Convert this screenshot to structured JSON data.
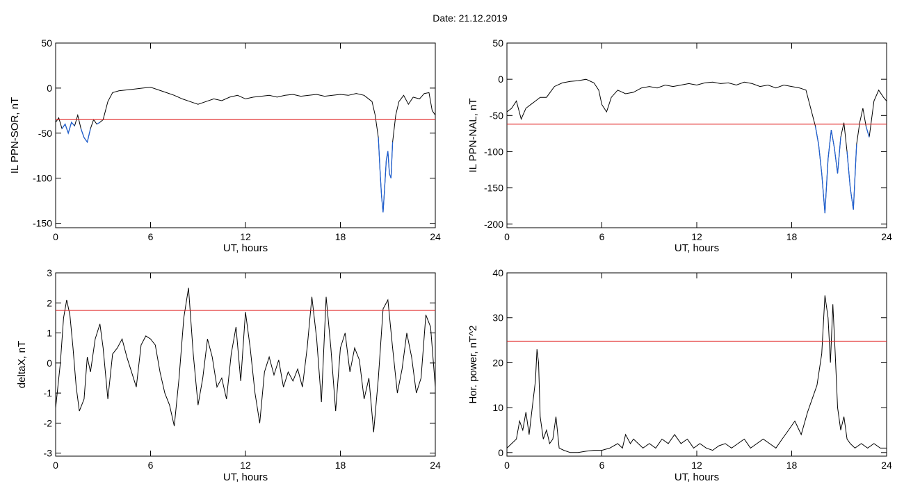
{
  "header": {
    "date_label": "Date:  21.12.2019"
  },
  "colors": {
    "trace": "#000000",
    "threshold": "#e02020",
    "segment_blue": "#1f5fd0",
    "segment_green": "#2ab52a",
    "marker_red": "#e02020",
    "marker_blue": "#2060d0",
    "marker_green": "#30b030"
  },
  "chart_data": [
    {
      "id": "il-sor",
      "type": "line",
      "ylabel": "IL PPN-SOR, nT",
      "xlabel": "UT, hours",
      "xlim": [
        0,
        24
      ],
      "ylim": [
        -155,
        50
      ],
      "xticks": [
        0,
        6,
        12,
        18,
        24
      ],
      "yticks": [
        50,
        0,
        -50,
        -100,
        -150
      ],
      "threshold": -35,
      "series": [
        {
          "x": [
            0,
            0.2,
            0.4,
            0.6,
            0.8,
            1.0,
            1.2,
            1.4,
            1.6,
            1.8,
            2.0,
            2.2,
            2.4,
            2.6,
            2.8,
            3.0,
            3.3,
            3.6,
            4.0,
            4.5,
            5.0,
            5.5,
            6.0,
            6.5,
            7.0,
            7.5,
            8.0,
            8.5,
            9.0,
            9.5,
            10.0,
            10.5,
            11.0,
            11.5,
            12.0,
            12.5,
            13.0,
            13.5,
            14.0,
            14.5,
            15.0,
            15.5,
            16.0,
            16.5,
            17.0,
            17.5,
            18.0,
            18.5,
            19.0,
            19.5,
            20.0,
            20.2,
            20.4,
            20.5,
            20.6,
            20.7,
            20.8,
            20.9,
            21.0,
            21.1,
            21.2,
            21.3,
            21.5,
            21.7,
            22.0,
            22.3,
            22.6,
            23.0,
            23.3,
            23.6,
            23.8,
            24.0
          ],
          "y": [
            -38,
            -33,
            -45,
            -40,
            -50,
            -38,
            -42,
            -30,
            -45,
            -55,
            -60,
            -45,
            -35,
            -40,
            -38,
            -35,
            -15,
            -5,
            -3,
            -2,
            -1,
            0,
            1,
            -2,
            -5,
            -8,
            -12,
            -15,
            -18,
            -15,
            -12,
            -14,
            -10,
            -8,
            -12,
            -10,
            -9,
            -8,
            -10,
            -8,
            -7,
            -9,
            -8,
            -7,
            -9,
            -8,
            -7,
            -8,
            -6,
            -8,
            -15,
            -30,
            -55,
            -90,
            -120,
            -138,
            -110,
            -80,
            -70,
            -95,
            -100,
            -60,
            -30,
            -15,
            -8,
            -18,
            -10,
            -12,
            -6,
            -5,
            -25,
            -30
          ]
        }
      ]
    },
    {
      "id": "il-nal",
      "type": "line",
      "ylabel": "IL PPN-NAL, nT",
      "xlabel": "UT, hours",
      "xlim": [
        0,
        24
      ],
      "ylim": [
        -205,
        50
      ],
      "xticks": [
        0,
        6,
        12,
        18,
        24
      ],
      "yticks": [
        50,
        0,
        -50,
        -100,
        -150,
        -200
      ],
      "threshold": -62,
      "series": [
        {
          "x": [
            0,
            0.3,
            0.6,
            0.9,
            1.2,
            1.5,
            1.8,
            2.1,
            2.5,
            3.0,
            3.5,
            4.0,
            4.5,
            5.0,
            5.5,
            5.8,
            6.0,
            6.3,
            6.6,
            7.0,
            7.5,
            8.0,
            8.5,
            9.0,
            9.5,
            10.0,
            10.5,
            11.0,
            11.5,
            12.0,
            12.5,
            13.0,
            13.5,
            14.0,
            14.5,
            15.0,
            15.5,
            16.0,
            16.5,
            17.0,
            17.5,
            18.0,
            18.5,
            18.9,
            19.2,
            19.5,
            19.7,
            19.9,
            20.1,
            20.3,
            20.5,
            20.7,
            20.9,
            21.1,
            21.3,
            21.5,
            21.7,
            21.9,
            22.1,
            22.3,
            22.5,
            22.7,
            22.9,
            23.2,
            23.5,
            23.8,
            24.0
          ],
          "y": [
            -45,
            -40,
            -30,
            -55,
            -40,
            -35,
            -30,
            -25,
            -25,
            -10,
            -5,
            -3,
            -2,
            0,
            -5,
            -15,
            -35,
            -45,
            -25,
            -15,
            -20,
            -18,
            -12,
            -10,
            -12,
            -8,
            -10,
            -8,
            -6,
            -8,
            -5,
            -4,
            -6,
            -5,
            -8,
            -4,
            -6,
            -10,
            -8,
            -12,
            -8,
            -10,
            -12,
            -15,
            -40,
            -65,
            -90,
            -130,
            -185,
            -110,
            -70,
            -95,
            -130,
            -80,
            -60,
            -100,
            -150,
            -180,
            -90,
            -60,
            -40,
            -65,
            -80,
            -30,
            -15,
            -25,
            -30
          ]
        }
      ]
    },
    {
      "id": "deltax",
      "type": "line",
      "ylabel": "deltaX, nT",
      "xlabel": "UT, hours",
      "xlim": [
        0,
        24
      ],
      "ylim": [
        -3.1,
        3
      ],
      "xticks": [
        0,
        6,
        12,
        18,
        24
      ],
      "yticks": [
        3,
        2,
        1,
        0,
        -1,
        -2,
        -3
      ],
      "threshold": 1.75,
      "series": [
        {
          "x": [
            0,
            0.3,
            0.5,
            0.7,
            0.9,
            1.1,
            1.3,
            1.5,
            1.8,
            2.0,
            2.2,
            2.5,
            2.8,
            3.0,
            3.3,
            3.6,
            3.9,
            4.2,
            4.5,
            4.8,
            5.1,
            5.4,
            5.7,
            6.0,
            6.3,
            6.6,
            6.9,
            7.2,
            7.5,
            7.8,
            8.1,
            8.4,
            8.7,
            9.0,
            9.3,
            9.6,
            9.9,
            10.2,
            10.5,
            10.8,
            11.1,
            11.4,
            11.7,
            12.0,
            12.3,
            12.6,
            12.9,
            13.2,
            13.5,
            13.8,
            14.1,
            14.4,
            14.7,
            15.0,
            15.3,
            15.6,
            15.9,
            16.2,
            16.5,
            16.8,
            17.1,
            17.4,
            17.7,
            18.0,
            18.3,
            18.6,
            18.9,
            19.2,
            19.5,
            19.8,
            20.1,
            20.4,
            20.7,
            21.0,
            21.3,
            21.6,
            21.9,
            22.2,
            22.5,
            22.8,
            23.1,
            23.4,
            23.7,
            24.0
          ],
          "y": [
            -1.5,
            0,
            1.5,
            2.1,
            1.6,
            0.5,
            -0.8,
            -1.6,
            -1.2,
            0.2,
            -0.3,
            0.8,
            1.3,
            0.5,
            -1.2,
            0.3,
            0.5,
            0.8,
            0.2,
            -0.3,
            -0.8,
            0.6,
            0.9,
            0.8,
            0.6,
            -0.3,
            -1.0,
            -1.4,
            -2.1,
            -0.5,
            1.5,
            2.5,
            0.3,
            -1.4,
            -0.5,
            0.8,
            0.2,
            -0.8,
            -0.5,
            -1.2,
            0.3,
            1.2,
            -0.6,
            1.7,
            0.5,
            -1.0,
            -2.0,
            -0.3,
            0.2,
            -0.4,
            0.1,
            -0.8,
            -0.3,
            -0.6,
            -0.2,
            -0.8,
            0.5,
            2.2,
            0.8,
            -1.3,
            2.2,
            0.5,
            -1.6,
            0.5,
            1.0,
            -0.3,
            0.5,
            0.1,
            -1.2,
            -0.5,
            -2.3,
            -0.5,
            1.8,
            2.1,
            0.5,
            -1.0,
            -0.2,
            1.0,
            0.2,
            -1.0,
            -0.5,
            1.6,
            1.2,
            -0.8
          ]
        }
      ]
    },
    {
      "id": "hor-power",
      "type": "line",
      "ylabel": "Hor. power, nT^2",
      "xlabel": "UT, hours",
      "xlim": [
        0,
        24
      ],
      "ylim": [
        -0.8,
        40
      ],
      "xticks": [
        0,
        6,
        12,
        18,
        24
      ],
      "yticks": [
        40,
        30,
        20,
        10,
        0
      ],
      "threshold": 24.8,
      "series": [
        {
          "x": [
            0,
            0.3,
            0.6,
            0.8,
            1.0,
            1.2,
            1.4,
            1.6,
            1.8,
            1.9,
            2.0,
            2.1,
            2.3,
            2.5,
            2.7,
            2.9,
            3.1,
            3.3,
            3.6,
            4.0,
            4.5,
            5.0,
            5.5,
            6.0,
            6.5,
            7.0,
            7.3,
            7.5,
            7.8,
            8.0,
            8.3,
            8.6,
            9.0,
            9.4,
            9.8,
            10.2,
            10.6,
            11.0,
            11.4,
            11.8,
            12.2,
            12.6,
            13.0,
            13.4,
            13.8,
            14.2,
            14.6,
            15.0,
            15.4,
            15.8,
            16.2,
            16.6,
            17.0,
            17.4,
            17.8,
            18.2,
            18.6,
            19.0,
            19.3,
            19.6,
            19.9,
            20.1,
            20.3,
            20.45,
            20.6,
            20.75,
            20.9,
            21.1,
            21.3,
            21.5,
            21.7,
            22.0,
            22.4,
            22.8,
            23.2,
            23.6,
            24.0
          ],
          "y": [
            1,
            2,
            3,
            7,
            5,
            9,
            4,
            10,
            16,
            23,
            20,
            8,
            3,
            5,
            2,
            3,
            8,
            1,
            0.5,
            0,
            0,
            0.3,
            0.5,
            0.5,
            1,
            2,
            1,
            4,
            2,
            3,
            2,
            1,
            2,
            1,
            3,
            2,
            4,
            2,
            3,
            1,
            2,
            1,
            0.5,
            1.5,
            2,
            1,
            2,
            3,
            1,
            2,
            3,
            2,
            1,
            3,
            5,
            7,
            4,
            9,
            12,
            15,
            22,
            35,
            30,
            20,
            33,
            22,
            10,
            5,
            8,
            3,
            2,
            1,
            2,
            1,
            2,
            1,
            1
          ]
        }
      ]
    }
  ]
}
